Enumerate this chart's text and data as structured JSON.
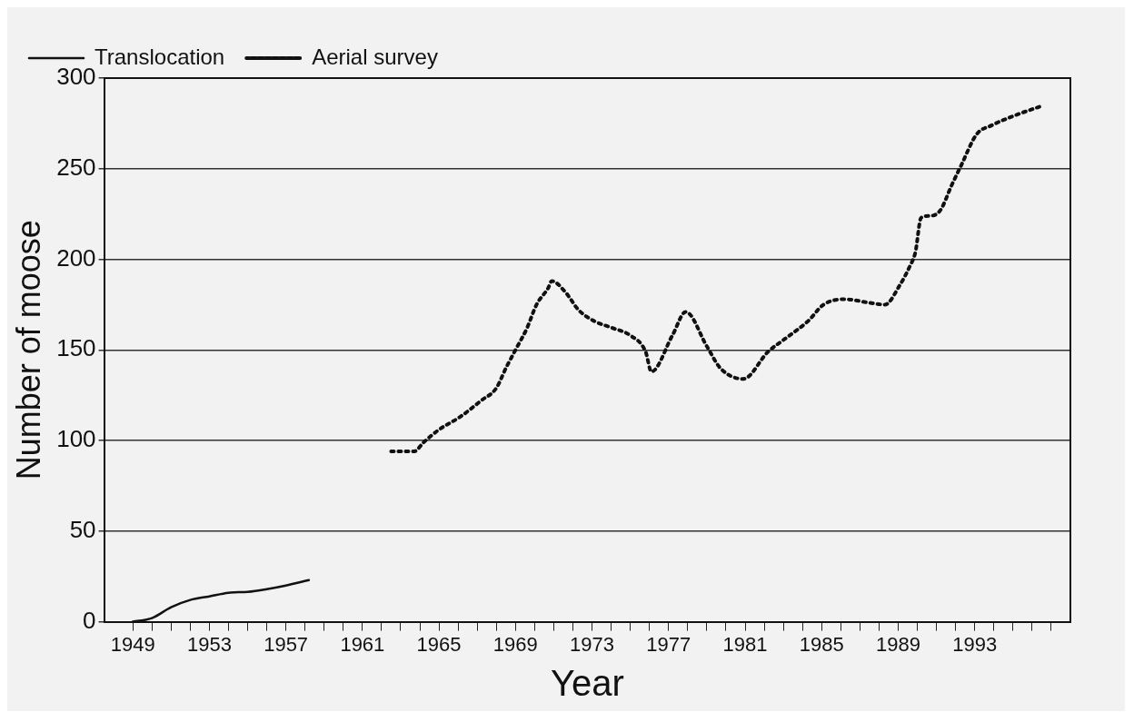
{
  "chart_data": {
    "type": "line",
    "xlabel": "Year",
    "ylabel": "Number of moose",
    "xlim": [
      1947.5,
      1998
    ],
    "xticks": [
      {
        "value": 1949,
        "label": "1949"
      },
      {
        "value": 1950,
        "label": null
      },
      {
        "value": 1951,
        "label": null
      },
      {
        "value": 1952,
        "label": null
      },
      {
        "value": 1953,
        "label": "1953"
      },
      {
        "value": 1954,
        "label": null
      },
      {
        "value": 1955,
        "label": null
      },
      {
        "value": 1956,
        "label": null
      },
      {
        "value": 1957,
        "label": "1957"
      },
      {
        "value": 1958,
        "label": null
      },
      {
        "value": 1959,
        "label": null
      },
      {
        "value": 1960,
        "label": null
      },
      {
        "value": 1961,
        "label": "1961"
      },
      {
        "value": 1962,
        "label": null
      },
      {
        "value": 1963,
        "label": null
      },
      {
        "value": 1964,
        "label": null
      },
      {
        "value": 1965,
        "label": "1965"
      },
      {
        "value": 1966,
        "label": null
      },
      {
        "value": 1967,
        "label": null
      },
      {
        "value": 1968,
        "label": null
      },
      {
        "value": 1969,
        "label": "1969"
      },
      {
        "value": 1970,
        "label": null
      },
      {
        "value": 1971,
        "label": null
      },
      {
        "value": 1972,
        "label": null
      },
      {
        "value": 1973,
        "label": "1973"
      },
      {
        "value": 1974,
        "label": null
      },
      {
        "value": 1975,
        "label": null
      },
      {
        "value": 1976,
        "label": null
      },
      {
        "value": 1977,
        "label": "1977"
      },
      {
        "value": 1978,
        "label": null
      },
      {
        "value": 1979,
        "label": null
      },
      {
        "value": 1980,
        "label": null
      },
      {
        "value": 1981,
        "label": "1981"
      },
      {
        "value": 1982,
        "label": null
      },
      {
        "value": 1983,
        "label": null
      },
      {
        "value": 1984,
        "label": null
      },
      {
        "value": 1985,
        "label": "1985"
      },
      {
        "value": 1986,
        "label": null
      },
      {
        "value": 1987,
        "label": null
      },
      {
        "value": 1988,
        "label": null
      },
      {
        "value": 1989,
        "label": "1989"
      },
      {
        "value": 1990,
        "label": null
      },
      {
        "value": 1991,
        "label": null
      },
      {
        "value": 1992,
        "label": null
      },
      {
        "value": 1993,
        "label": "1993"
      },
      {
        "value": 1994,
        "label": null
      },
      {
        "value": 1995,
        "label": null
      },
      {
        "value": 1996,
        "label": null
      },
      {
        "value": 1997,
        "label": null
      }
    ],
    "ylim": [
      0,
      300
    ],
    "yticks": [
      0,
      50,
      100,
      150,
      200,
      250,
      300
    ],
    "grid": "y",
    "legend": "top left",
    "marker": "none",
    "series": [
      {
        "name": "Translocation",
        "color": "#111111",
        "line_style": "solid",
        "x": [
          1949,
          1950,
          1951,
          1952,
          1953,
          1954,
          1955,
          1956,
          1957,
          1958.2
        ],
        "values": [
          0,
          2,
          8,
          12,
          14,
          16,
          16.5,
          18,
          20,
          23
        ]
      },
      {
        "name": "Aerial survey",
        "color": "#111111",
        "line_style": "dotted",
        "x": [
          1962.5,
          1963.7,
          1964.2,
          1965,
          1966.1,
          1967.2,
          1968,
          1968.5,
          1969,
          1969.6,
          1970.1,
          1970.7,
          1970.9,
          1971.6,
          1972.3,
          1973.1,
          1974.1,
          1975,
          1975.8,
          1976.1,
          1977.2,
          1977.9,
          1979,
          1979.7,
          1980.9,
          1982.2,
          1983.2,
          1984.3,
          1985.1,
          1986.2,
          1987.5,
          1988.3,
          1989.1,
          1989.6,
          1989.9,
          1990.2,
          1990.7,
          1991.2,
          1991.8,
          1992.3,
          1993.1,
          1993.9,
          1995,
          1996.6
        ],
        "values": [
          94,
          94,
          99,
          106,
          113,
          122,
          129,
          140,
          150,
          162,
          175,
          184,
          188,
          182,
          172,
          166,
          162,
          158,
          149,
          138,
          158,
          171,
          152,
          140,
          134,
          149,
          157,
          166,
          175,
          178,
          176,
          175,
          186,
          196,
          204,
          223,
          224,
          227,
          241,
          252,
          269,
          274,
          279,
          285
        ]
      }
    ]
  }
}
